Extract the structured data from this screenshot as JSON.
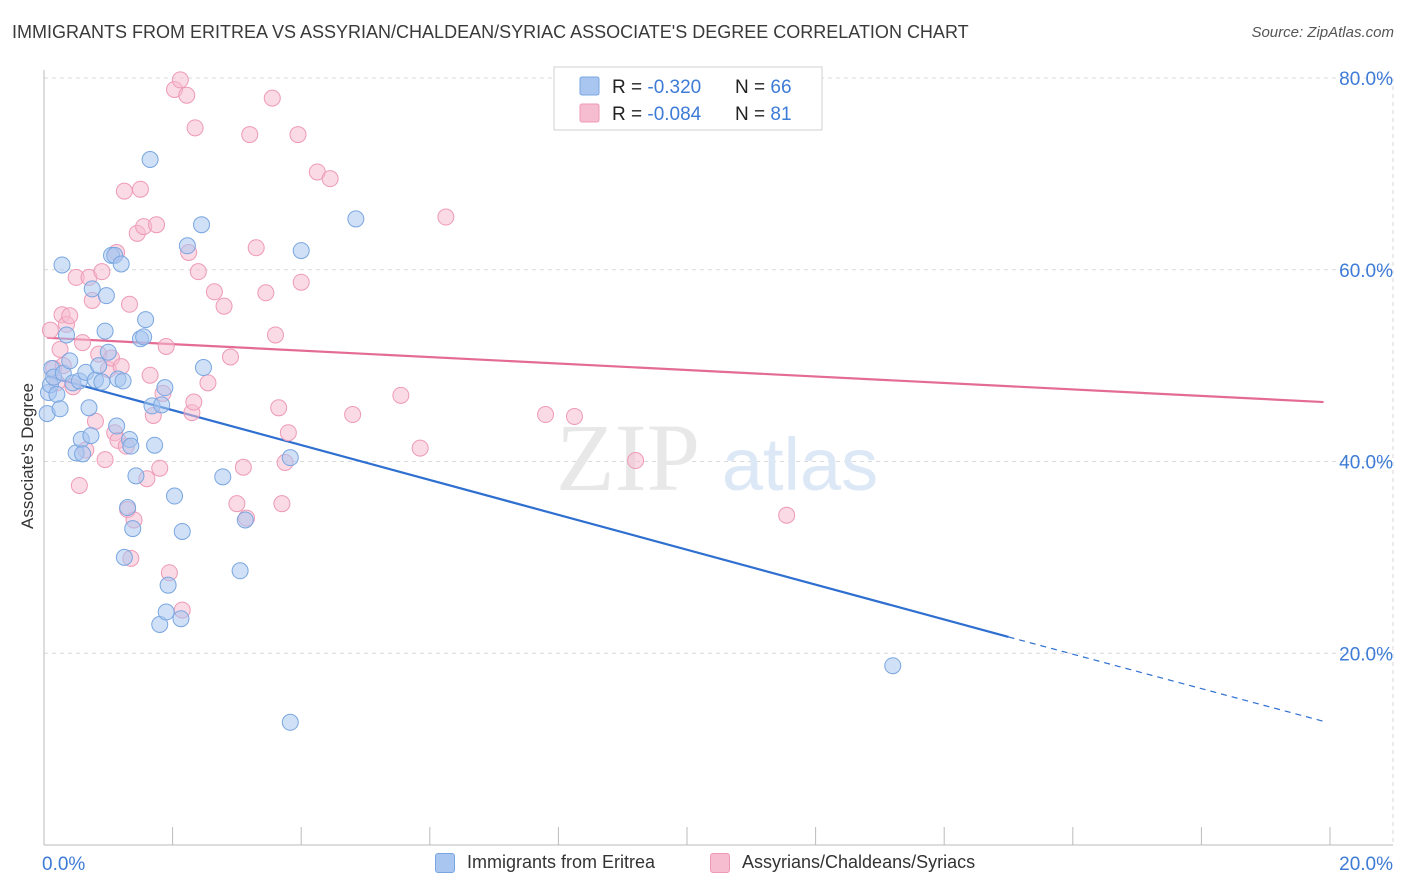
{
  "title": "IMMIGRANTS FROM ERITREA VS ASSYRIAN/CHALDEAN/SYRIAC ASSOCIATE'S DEGREE CORRELATION CHART",
  "source": "Source: ZipAtlas.com",
  "watermark": {
    "zip": "ZIP",
    "atlas": "atlas"
  },
  "colors": {
    "blue_fill": "#a8c6f0",
    "blue_stroke": "#7aa6e0",
    "blue_line": "#2e6fd0",
    "pink_fill": "#f6bcd0",
    "pink_stroke": "#ee9ab6",
    "pink_line": "#e46b94",
    "axis_label": "#3d7bd6",
    "grid": "#d9d9d9"
  },
  "legend": {
    "rows": [
      {
        "r_label": "R = ",
        "r_value": "-0.320",
        "n_label": "N = ",
        "n_value": "66"
      },
      {
        "r_label": "R = ",
        "r_value": "-0.084",
        "n_label": "N = ",
        "n_value": "81"
      }
    ]
  },
  "chart_data": {
    "type": "scatter",
    "title": "IMMIGRANTS FROM ERITREA VS ASSYRIAN/CHALDEAN/SYRIAC ASSOCIATE'S DEGREE CORRELATION CHART",
    "xlabel": "",
    "ylabel": "Associate's Degree",
    "xlim": [
      0,
      0.2
    ],
    "ylim": [
      0,
      0.8
    ],
    "x_ticks": [
      {
        "value": 0,
        "label": "0.0%"
      },
      {
        "value": 0.2,
        "label": "20.0%"
      }
    ],
    "y_ticks": [
      {
        "value": 0.2,
        "label": "20.0%"
      },
      {
        "value": 0.4,
        "label": "40.0%"
      },
      {
        "value": 0.6,
        "label": "60.0%"
      },
      {
        "value": 0.8,
        "label": "80.0%"
      }
    ],
    "grid": true,
    "legend_position": "top-center",
    "series": [
      {
        "name": "Immigrants from Eritrea",
        "color": "#a8c6f0",
        "trend": {
          "x0": 0.0005,
          "y0": 0.489,
          "x1": 0.15,
          "y1": 0.217,
          "dash_to_x": 0.199,
          "dash_to_y": 0.129
        },
        "points": [
          [
            0.0005,
            0.45
          ],
          [
            0.0007,
            0.472
          ],
          [
            0.001,
            0.48
          ],
          [
            0.0012,
            0.497
          ],
          [
            0.0015,
            0.488
          ],
          [
            0.002,
            0.47
          ],
          [
            0.0025,
            0.455
          ],
          [
            0.0028,
            0.605
          ],
          [
            0.003,
            0.492
          ],
          [
            0.0035,
            0.532
          ],
          [
            0.004,
            0.505
          ],
          [
            0.0045,
            0.482
          ],
          [
            0.005,
            0.409
          ],
          [
            0.0055,
            0.484
          ],
          [
            0.0058,
            0.423
          ],
          [
            0.006,
            0.408
          ],
          [
            0.0065,
            0.493
          ],
          [
            0.007,
            0.456
          ],
          [
            0.0073,
            0.427
          ],
          [
            0.0075,
            0.58
          ],
          [
            0.008,
            0.485
          ],
          [
            0.0085,
            0.5
          ],
          [
            0.009,
            0.483
          ],
          [
            0.0095,
            0.536
          ],
          [
            0.0097,
            0.573
          ],
          [
            0.01,
            0.514
          ],
          [
            0.0105,
            0.615
          ],
          [
            0.011,
            0.615
          ],
          [
            0.0113,
            0.437
          ],
          [
            0.0115,
            0.486
          ],
          [
            0.012,
            0.606
          ],
          [
            0.0123,
            0.484
          ],
          [
            0.0125,
            0.3
          ],
          [
            0.013,
            0.352
          ],
          [
            0.0133,
            0.423
          ],
          [
            0.0135,
            0.416
          ],
          [
            0.0138,
            0.33
          ],
          [
            0.0143,
            0.385
          ],
          [
            0.015,
            0.528
          ],
          [
            0.0155,
            0.53
          ],
          [
            0.0158,
            0.548
          ],
          [
            0.0165,
            0.715
          ],
          [
            0.0168,
            0.458
          ],
          [
            0.0172,
            0.417
          ],
          [
            0.018,
            0.23
          ],
          [
            0.0183,
            0.459
          ],
          [
            0.0188,
            0.477
          ],
          [
            0.019,
            0.243
          ],
          [
            0.0193,
            0.271
          ],
          [
            0.0203,
            0.364
          ],
          [
            0.0213,
            0.236
          ],
          [
            0.0215,
            0.327
          ],
          [
            0.0223,
            0.625
          ],
          [
            0.0245,
            0.647
          ],
          [
            0.0248,
            0.498
          ],
          [
            0.0278,
            0.384
          ],
          [
            0.0305,
            0.286
          ],
          [
            0.0313,
            0.339
          ],
          [
            0.0383,
            0.404
          ],
          [
            0.0383,
            0.128
          ],
          [
            0.04,
            0.62
          ],
          [
            0.0485,
            0.653
          ],
          [
            0.132,
            0.187
          ]
        ]
      },
      {
        "name": "Assyrians/Chaldeans/Syriacs",
        "color": "#f6bcd0",
        "trend": {
          "x0": 0.0005,
          "y0": 0.529,
          "x1": 0.199,
          "y1": 0.462
        },
        "points": [
          [
            0.001,
            0.537
          ],
          [
            0.0015,
            0.497
          ],
          [
            0.002,
            0.482
          ],
          [
            0.0025,
            0.517
          ],
          [
            0.0028,
            0.553
          ],
          [
            0.003,
            0.5
          ],
          [
            0.0035,
            0.543
          ],
          [
            0.004,
            0.552
          ],
          [
            0.0045,
            0.478
          ],
          [
            0.005,
            0.592
          ],
          [
            0.0055,
            0.375
          ],
          [
            0.006,
            0.524
          ],
          [
            0.0065,
            0.412
          ],
          [
            0.007,
            0.592
          ],
          [
            0.0075,
            0.568
          ],
          [
            0.008,
            0.442
          ],
          [
            0.0085,
            0.512
          ],
          [
            0.009,
            0.598
          ],
          [
            0.0095,
            0.402
          ],
          [
            0.01,
            0.496
          ],
          [
            0.0105,
            0.508
          ],
          [
            0.011,
            0.43
          ],
          [
            0.0113,
            0.618
          ],
          [
            0.0115,
            0.422
          ],
          [
            0.012,
            0.499
          ],
          [
            0.0125,
            0.682
          ],
          [
            0.0128,
            0.416
          ],
          [
            0.013,
            0.35
          ],
          [
            0.0133,
            0.564
          ],
          [
            0.0135,
            0.299
          ],
          [
            0.014,
            0.339
          ],
          [
            0.0145,
            0.638
          ],
          [
            0.015,
            0.684
          ],
          [
            0.0155,
            0.645
          ],
          [
            0.016,
            0.382
          ],
          [
            0.0165,
            0.49
          ],
          [
            0.017,
            0.448
          ],
          [
            0.0175,
            0.647
          ],
          [
            0.018,
            0.393
          ],
          [
            0.0185,
            0.471
          ],
          [
            0.019,
            0.52
          ],
          [
            0.0195,
            0.284
          ],
          [
            0.0203,
            0.788
          ],
          [
            0.0212,
            0.798
          ],
          [
            0.0215,
            0.245
          ],
          [
            0.0222,
            0.782
          ],
          [
            0.0225,
            0.618
          ],
          [
            0.023,
            0.451
          ],
          [
            0.0233,
            0.462
          ],
          [
            0.0235,
            0.748
          ],
          [
            0.024,
            0.598
          ],
          [
            0.0255,
            0.482
          ],
          [
            0.0265,
            0.577
          ],
          [
            0.028,
            0.562
          ],
          [
            0.029,
            0.509
          ],
          [
            0.03,
            0.356
          ],
          [
            0.031,
            0.394
          ],
          [
            0.0315,
            0.341
          ],
          [
            0.032,
            0.741
          ],
          [
            0.033,
            0.623
          ],
          [
            0.0345,
            0.576
          ],
          [
            0.0355,
            0.779
          ],
          [
            0.036,
            0.532
          ],
          [
            0.0365,
            0.456
          ],
          [
            0.037,
            0.356
          ],
          [
            0.0375,
            0.399
          ],
          [
            0.038,
            0.43
          ],
          [
            0.0395,
            0.741
          ],
          [
            0.04,
            0.587
          ],
          [
            0.0425,
            0.702
          ],
          [
            0.0445,
            0.695
          ],
          [
            0.048,
            0.449
          ],
          [
            0.0555,
            0.469
          ],
          [
            0.0585,
            0.414
          ],
          [
            0.0625,
            0.655
          ],
          [
            0.078,
            0.449
          ],
          [
            0.0825,
            0.447
          ],
          [
            0.092,
            0.401
          ],
          [
            0.1155,
            0.344
          ]
        ]
      }
    ]
  }
}
